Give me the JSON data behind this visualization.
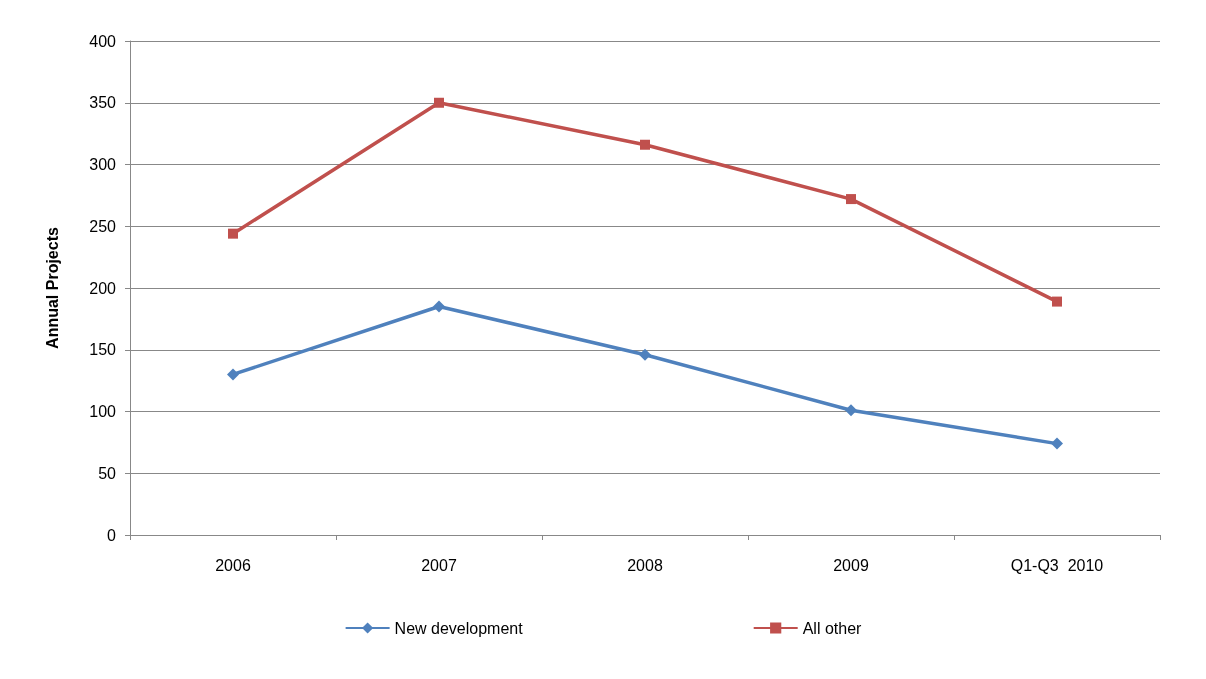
{
  "chart_data": {
    "type": "line",
    "ylabel": "Annual Projects",
    "categories": [
      "2006",
      "2007",
      "2008",
      "2009",
      "Q1-Q3  2010"
    ],
    "series": [
      {
        "name": "New development",
        "color": "#4f81bd",
        "marker": "diamond",
        "values": [
          130,
          185,
          146,
          101,
          74
        ]
      },
      {
        "name": "All other",
        "color": "#c0504d",
        "marker": "square",
        "values": [
          244,
          350,
          316,
          272,
          189
        ]
      }
    ],
    "ylim": [
      0,
      400
    ],
    "yticks": [
      0,
      50,
      100,
      150,
      200,
      250,
      300,
      350,
      400
    ],
    "grid": "y",
    "legend": "bottom"
  }
}
